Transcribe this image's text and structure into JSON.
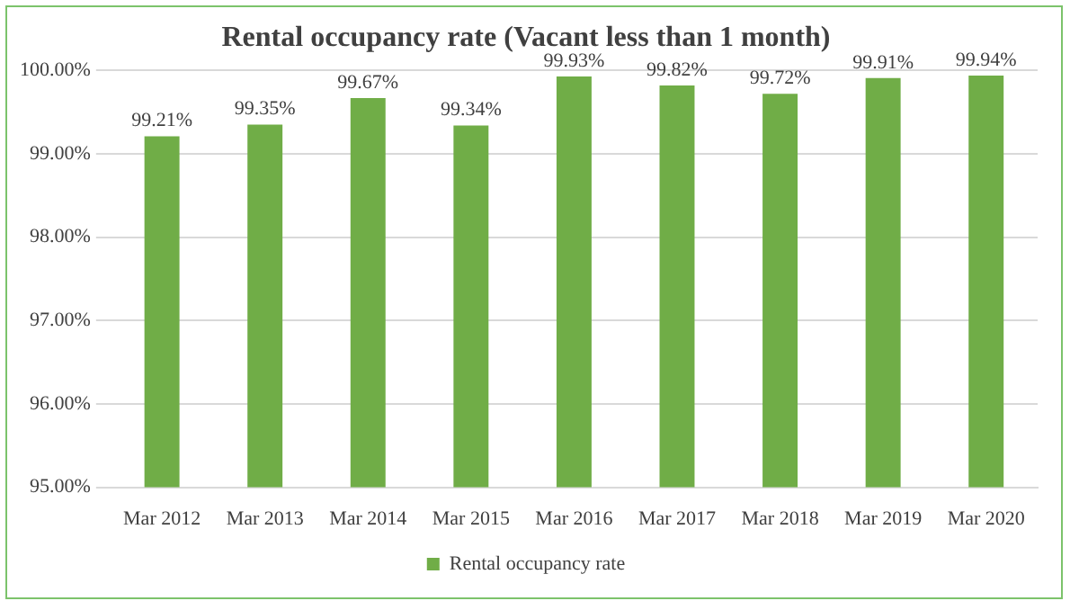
{
  "chart_data": {
    "type": "bar",
    "title": "Rental occupancy rate (Vacant less than 1 month)",
    "categories": [
      "Mar 2012",
      "Mar 2013",
      "Mar 2014",
      "Mar 2015",
      "Mar 2016",
      "Mar 2017",
      "Mar 2018",
      "Mar 2019",
      "Mar 2020"
    ],
    "series": [
      {
        "name": "Rental occupancy rate",
        "color": "#70ad47",
        "values": [
          99.21,
          99.35,
          99.67,
          99.34,
          99.93,
          99.82,
          99.72,
          99.91,
          99.94
        ],
        "value_labels": [
          "99.21%",
          "99.35%",
          "99.67%",
          "99.34%",
          "99.93%",
          "99.82%",
          "99.72%",
          "99.91%",
          "99.94%"
        ]
      }
    ],
    "ylim": [
      95,
      100
    ],
    "yticks": [
      {
        "value": 95,
        "label": "95.00%"
      },
      {
        "value": 96,
        "label": "96.00%"
      },
      {
        "value": 97,
        "label": "97.00%"
      },
      {
        "value": 98,
        "label": "98.00%"
      },
      {
        "value": 99,
        "label": "99.00%"
      },
      {
        "value": 100,
        "label": "100.00%"
      }
    ],
    "grid": "y",
    "legend": "bottom"
  }
}
